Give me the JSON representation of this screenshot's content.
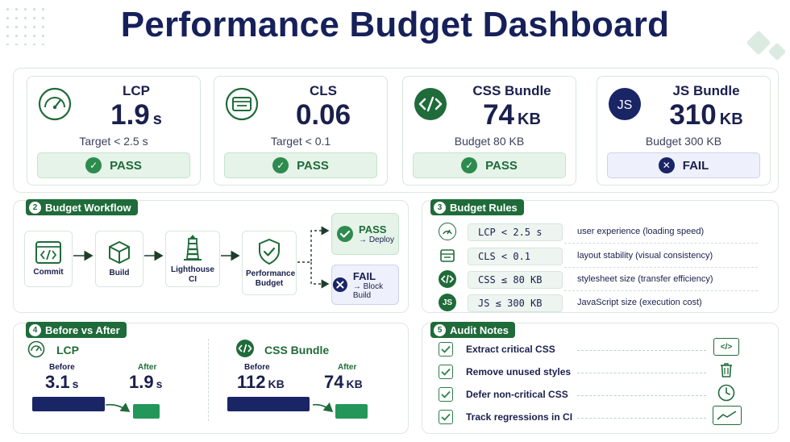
{
  "title": "Performance Budget Dashboard",
  "metrics": [
    {
      "name": "LCP",
      "value": "1.9",
      "unit": "s",
      "target": "Target < 2.5 s",
      "status": "PASS",
      "icon": "gauge-icon"
    },
    {
      "name": "CLS",
      "value": "0.06",
      "unit": "",
      "target": "Target < 0.1",
      "status": "PASS",
      "icon": "layout-icon"
    },
    {
      "name": "CSS Bundle",
      "value": "74",
      "unit": "KB",
      "target": "Budget 80 KB",
      "status": "PASS",
      "icon": "code-icon"
    },
    {
      "name": "JS Bundle",
      "value": "310",
      "unit": "KB",
      "target": "Budget 300 KB",
      "status": "FAIL",
      "icon": "js-icon"
    }
  ],
  "workflow": {
    "number": "2",
    "title": "Budget Workflow",
    "steps": [
      "Commit",
      "Build",
      "Lighthouse CI",
      "Performance Budget"
    ],
    "pass": {
      "label": "PASS",
      "action": "→ Deploy"
    },
    "fail": {
      "label": "FAIL",
      "action": "→ Block Build"
    }
  },
  "rules": {
    "number": "3",
    "title": "Budget Rules",
    "items": [
      {
        "code": "LCP < 2.5 s",
        "desc": "user experience (loading speed)",
        "icon": "gauge-icon"
      },
      {
        "code": "CLS < 0.1",
        "desc": "layout stability (visual consistency)",
        "icon": "layout-icon"
      },
      {
        "code": "CSS ≤ 80 KB",
        "desc": "stylesheet size (transfer efficiency)",
        "icon": "code-icon"
      },
      {
        "code": "JS ≤ 300 KB",
        "desc": "JavaScript size (execution cost)",
        "icon": "js-icon"
      }
    ]
  },
  "before_after": {
    "number": "4",
    "title": "Before vs After",
    "lcp": {
      "name": "LCP",
      "before_label": "Before",
      "after_label": "After",
      "before": "3.1",
      "after": "1.9",
      "unit": "s"
    },
    "css": {
      "name": "CSS Bundle",
      "before_label": "Before",
      "after_label": "After",
      "before": "112",
      "after": "74",
      "unit": "KB"
    }
  },
  "notes": {
    "number": "5",
    "title": "Audit Notes",
    "items": [
      {
        "text": "Extract critical CSS",
        "icon": "code-icon"
      },
      {
        "text": "Remove unused styles",
        "icon": "trash-icon"
      },
      {
        "text": "Defer non-critical CSS",
        "icon": "clock-icon"
      },
      {
        "text": "Track regressions in CI",
        "icon": "trend-chart-icon"
      }
    ]
  },
  "colors": {
    "green": "#1f6b3a",
    "navy": "#1a2566",
    "pass_bg": "#e5f3e8",
    "fail_bg": "#eef0fb"
  }
}
